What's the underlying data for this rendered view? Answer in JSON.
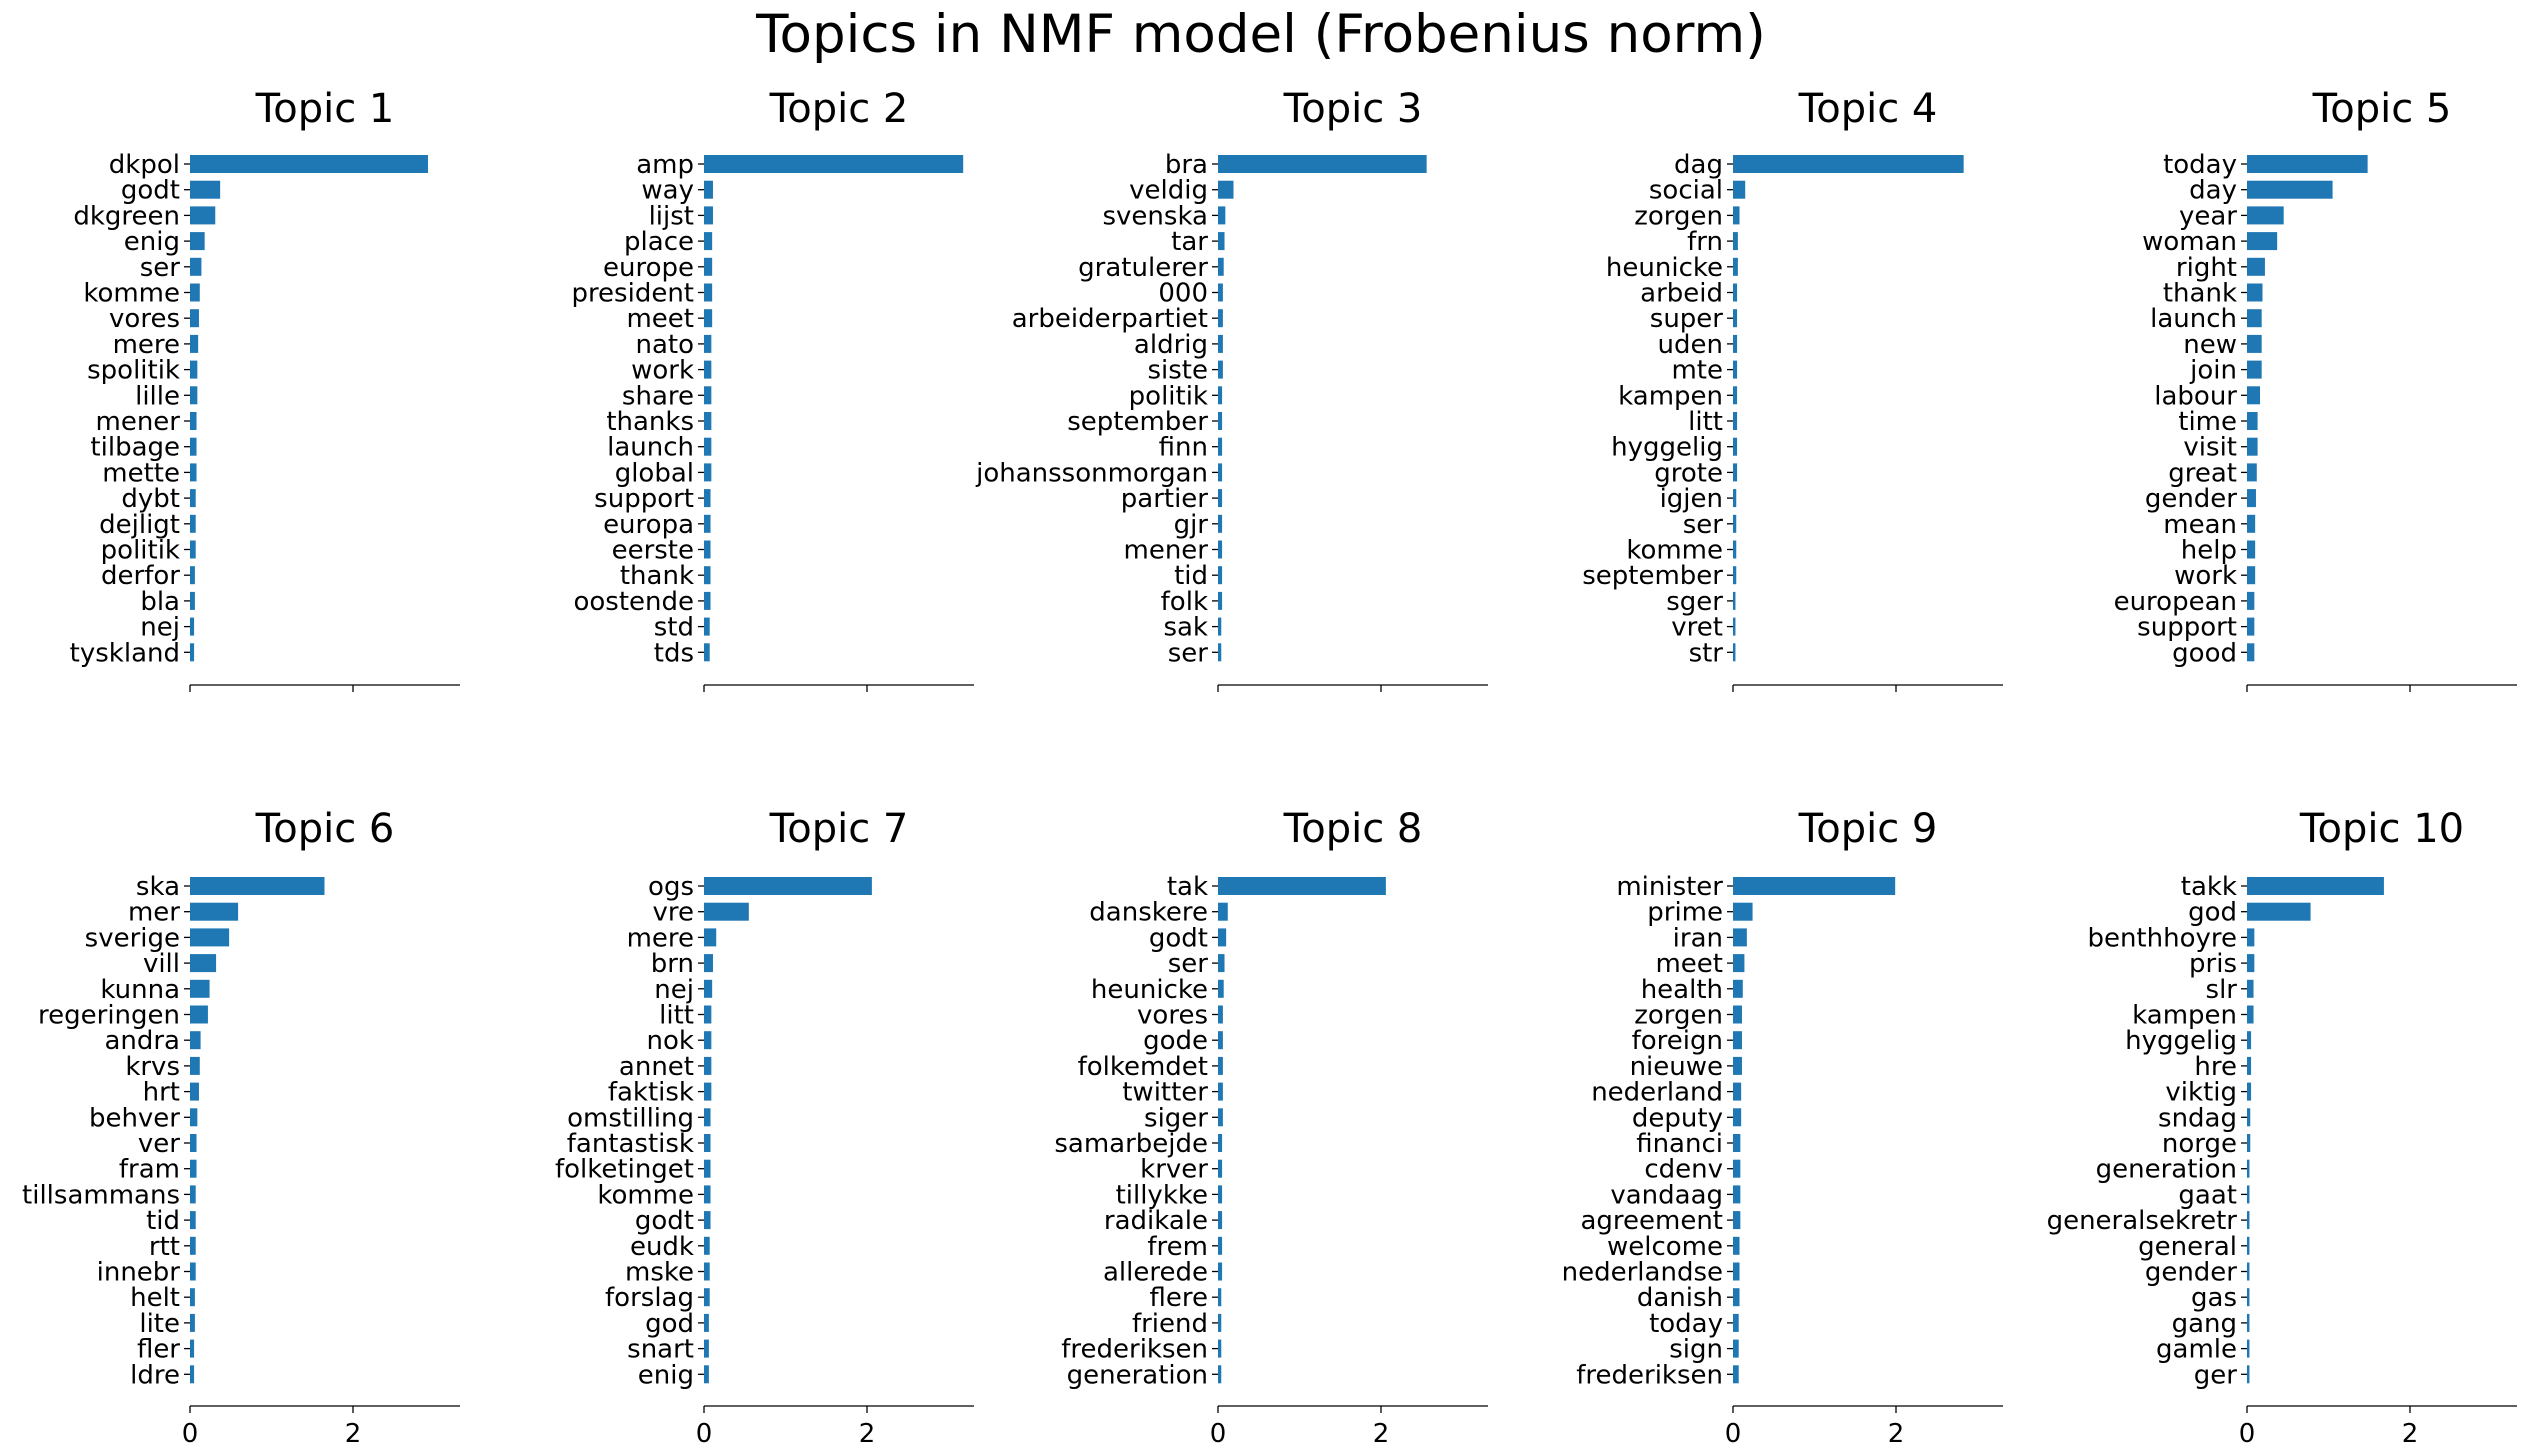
{
  "title": "Topics in NMF model (Frobenius norm)",
  "colors": {
    "bar": "#1f77b4",
    "axis": "#000000"
  },
  "x_ticks": [
    0,
    2
  ],
  "chart_data": [
    {
      "type": "bar",
      "orientation": "horizontal",
      "title": "Topic 1",
      "xlim": [
        0,
        3.3
      ],
      "categories": [
        "dkpol",
        "godt",
        "dkgreen",
        "enig",
        "ser",
        "komme",
        "vores",
        "mere",
        "spolitik",
        "lille",
        "mener",
        "tilbage",
        "mette",
        "dybt",
        "dejligt",
        "politik",
        "derfor",
        "bla",
        "nej",
        "tyskland"
      ],
      "values": [
        2.92,
        0.37,
        0.31,
        0.18,
        0.14,
        0.12,
        0.11,
        0.1,
        0.09,
        0.09,
        0.08,
        0.08,
        0.08,
        0.07,
        0.07,
        0.07,
        0.06,
        0.06,
        0.05,
        0.05
      ]
    },
    {
      "type": "bar",
      "orientation": "horizontal",
      "title": "Topic 2",
      "xlim": [
        0,
        3.3
      ],
      "categories": [
        "amp",
        "way",
        "lijst",
        "place",
        "europe",
        "president",
        "meet",
        "nato",
        "work",
        "share",
        "thanks",
        "launch",
        "global",
        "support",
        "europa",
        "eerste",
        "thank",
        "oostende",
        "std",
        "tds"
      ],
      "values": [
        3.18,
        0.11,
        0.11,
        0.1,
        0.1,
        0.1,
        0.1,
        0.09,
        0.09,
        0.09,
        0.09,
        0.09,
        0.09,
        0.08,
        0.08,
        0.08,
        0.08,
        0.08,
        0.07,
        0.07
      ]
    },
    {
      "type": "bar",
      "orientation": "horizontal",
      "title": "Topic 3",
      "xlim": [
        0,
        3.3
      ],
      "categories": [
        "bra",
        "veldig",
        "svenska",
        "tar",
        "gratulerer",
        "000",
        "arbeiderpartiet",
        "aldrig",
        "siste",
        "politik",
        "september",
        "finn",
        "johanssonmorgan",
        "partier",
        "gjr",
        "mener",
        "tid",
        "folk",
        "sak",
        "ser"
      ],
      "values": [
        2.56,
        0.19,
        0.09,
        0.08,
        0.07,
        0.06,
        0.06,
        0.06,
        0.06,
        0.05,
        0.05,
        0.05,
        0.05,
        0.05,
        0.05,
        0.05,
        0.05,
        0.05,
        0.04,
        0.04
      ]
    },
    {
      "type": "bar",
      "orientation": "horizontal",
      "title": "Topic 4",
      "xlim": [
        0,
        3.3
      ],
      "categories": [
        "dag",
        "social",
        "zorgen",
        "frn",
        "heunicke",
        "arbeid",
        "super",
        "uden",
        "mte",
        "kampen",
        "litt",
        "hyggelig",
        "grote",
        "igjen",
        "ser",
        "komme",
        "september",
        "sger",
        "vret",
        "str"
      ],
      "values": [
        2.83,
        0.15,
        0.08,
        0.06,
        0.06,
        0.05,
        0.05,
        0.05,
        0.05,
        0.05,
        0.05,
        0.05,
        0.05,
        0.04,
        0.04,
        0.04,
        0.04,
        0.03,
        0.03,
        0.03
      ]
    },
    {
      "type": "bar",
      "orientation": "horizontal",
      "title": "Topic 5",
      "xlim": [
        0,
        3.3
      ],
      "categories": [
        "today",
        "day",
        "year",
        "woman",
        "right",
        "thank",
        "launch",
        "new",
        "join",
        "labour",
        "time",
        "visit",
        "great",
        "gender",
        "mean",
        "help",
        "work",
        "european",
        "support",
        "good"
      ],
      "values": [
        1.48,
        1.05,
        0.45,
        0.37,
        0.22,
        0.19,
        0.18,
        0.18,
        0.18,
        0.16,
        0.13,
        0.13,
        0.12,
        0.11,
        0.1,
        0.1,
        0.1,
        0.09,
        0.09,
        0.09
      ]
    },
    {
      "type": "bar",
      "orientation": "horizontal",
      "title": "Topic 6",
      "xlim": [
        0,
        3.3
      ],
      "categories": [
        "ska",
        "mer",
        "sverige",
        "vill",
        "kunna",
        "regeringen",
        "andra",
        "krvs",
        "hrt",
        "behver",
        "ver",
        "fram",
        "tillsammans",
        "tid",
        "rtt",
        "innebr",
        "helt",
        "lite",
        "fler",
        "ldre"
      ],
      "values": [
        1.65,
        0.59,
        0.48,
        0.32,
        0.24,
        0.22,
        0.13,
        0.12,
        0.11,
        0.09,
        0.08,
        0.08,
        0.07,
        0.07,
        0.07,
        0.07,
        0.06,
        0.06,
        0.05,
        0.05
      ]
    },
    {
      "type": "bar",
      "orientation": "horizontal",
      "title": "Topic 7",
      "xlim": [
        0,
        3.3
      ],
      "categories": [
        "ogs",
        "vre",
        "mere",
        "brn",
        "nej",
        "litt",
        "nok",
        "annet",
        "faktisk",
        "omstilling",
        "fantastisk",
        "folketinget",
        "komme",
        "godt",
        "eudk",
        "mske",
        "forslag",
        "god",
        "snart",
        "enig"
      ],
      "values": [
        2.06,
        0.55,
        0.15,
        0.11,
        0.1,
        0.09,
        0.09,
        0.09,
        0.09,
        0.08,
        0.08,
        0.08,
        0.08,
        0.08,
        0.07,
        0.07,
        0.07,
        0.06,
        0.06,
        0.06
      ]
    },
    {
      "type": "bar",
      "orientation": "horizontal",
      "title": "Topic 8",
      "xlim": [
        0,
        3.3
      ],
      "categories": [
        "tak",
        "danskere",
        "godt",
        "ser",
        "heunicke",
        "vores",
        "gode",
        "folkemdet",
        "twitter",
        "siger",
        "samarbejde",
        "krver",
        "tillykke",
        "radikale",
        "frem",
        "allerede",
        "flere",
        "friend",
        "frederiksen",
        "generation"
      ],
      "values": [
        2.06,
        0.12,
        0.1,
        0.08,
        0.07,
        0.06,
        0.06,
        0.06,
        0.06,
        0.06,
        0.05,
        0.05,
        0.05,
        0.05,
        0.05,
        0.05,
        0.04,
        0.04,
        0.04,
        0.04
      ]
    },
    {
      "type": "bar",
      "orientation": "horizontal",
      "title": "Topic 9",
      "xlim": [
        0,
        3.3
      ],
      "categories": [
        "minister",
        "prime",
        "iran",
        "meet",
        "health",
        "zorgen",
        "foreign",
        "nieuwe",
        "nederland",
        "deputy",
        "financi",
        "cdenv",
        "vandaag",
        "agreement",
        "welcome",
        "nederlandse",
        "danish",
        "today",
        "sign",
        "frederiksen"
      ],
      "values": [
        1.99,
        0.24,
        0.17,
        0.14,
        0.12,
        0.11,
        0.11,
        0.11,
        0.1,
        0.1,
        0.09,
        0.09,
        0.09,
        0.09,
        0.08,
        0.08,
        0.08,
        0.07,
        0.07,
        0.07
      ]
    },
    {
      "type": "bar",
      "orientation": "horizontal",
      "title": "Topic 10",
      "xlim": [
        0,
        3.3
      ],
      "categories": [
        "takk",
        "god",
        "benthhoyre",
        "pris",
        "slr",
        "kampen",
        "hyggelig",
        "hre",
        "viktig",
        "sndag",
        "norge",
        "generation",
        "gaat",
        "generalsekretr",
        "general",
        "gender",
        "gas",
        "gang",
        "gamle",
        "ger"
      ],
      "values": [
        1.68,
        0.78,
        0.09,
        0.09,
        0.08,
        0.08,
        0.05,
        0.05,
        0.05,
        0.04,
        0.04,
        0.03,
        0.03,
        0.03,
        0.03,
        0.03,
        0.03,
        0.03,
        0.03,
        0.03
      ]
    }
  ]
}
